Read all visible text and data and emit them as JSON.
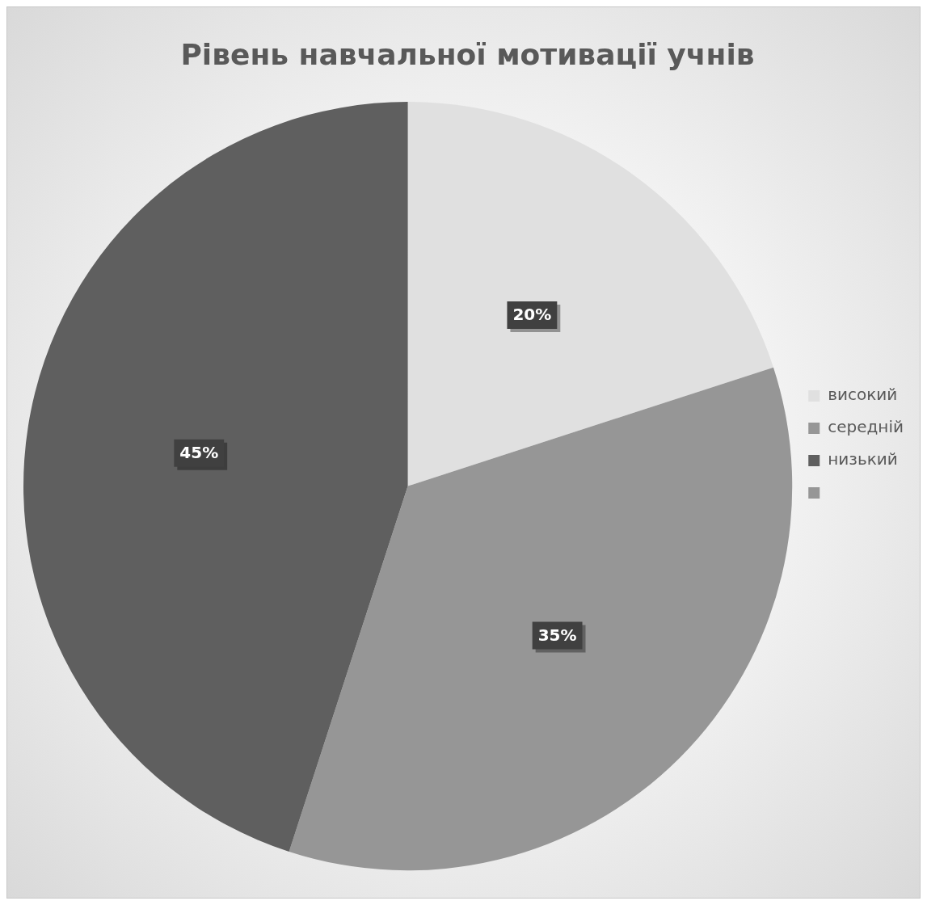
{
  "chart_data": {
    "type": "pie",
    "title": "Рівень навчальної мотивації учнів",
    "categories": [
      "високий",
      "середній",
      "низький",
      null
    ],
    "values": [
      20,
      35,
      45,
      0
    ],
    "colors": [
      "#e0e0e0",
      "#969696",
      "#5f5f5f",
      "#969696"
    ],
    "value_labels": [
      "20%",
      "35%",
      "45%",
      null
    ],
    "legend": "right"
  }
}
